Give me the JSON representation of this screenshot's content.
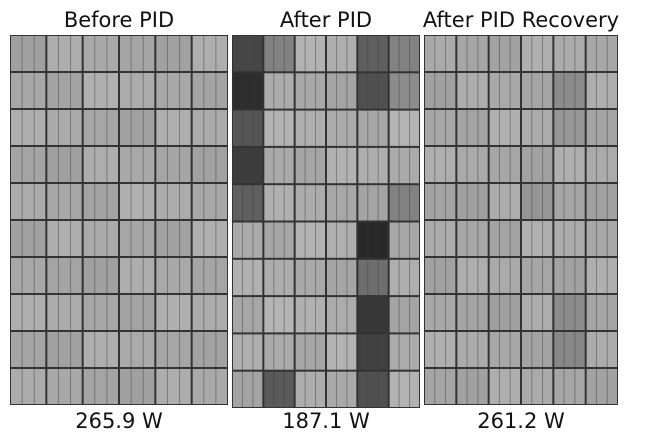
{
  "panels": [
    {
      "title": "Before PID",
      "power": "265.9 W"
    },
    {
      "title": "After PID",
      "power": "187.1 W"
    },
    {
      "title": "After PID Recovery",
      "power": "261.2 W"
    }
  ]
}
